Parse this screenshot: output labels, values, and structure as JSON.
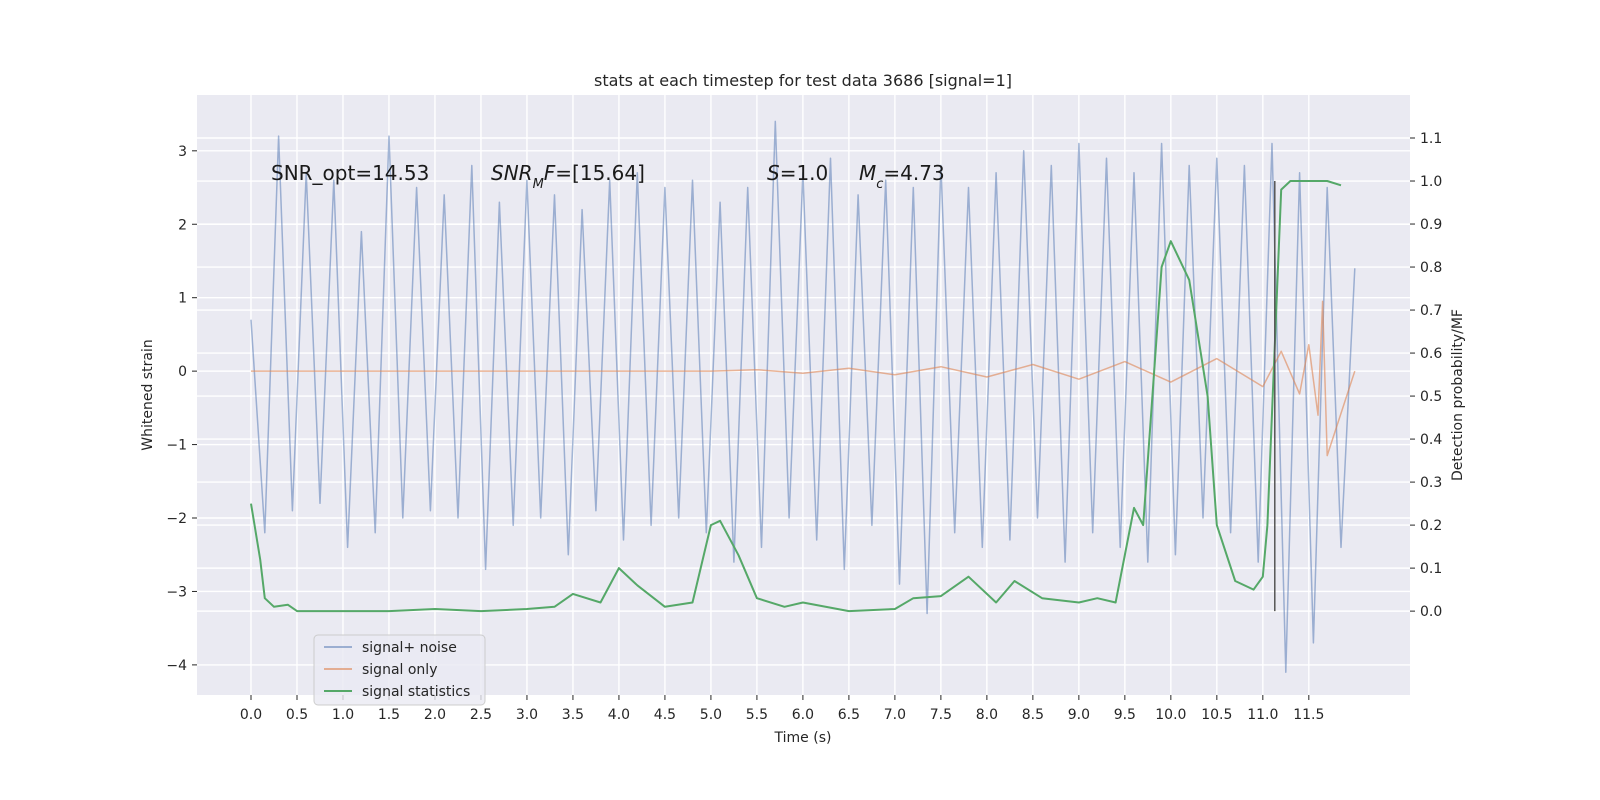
{
  "chart_data": {
    "type": "line",
    "title": "stats at each timestep for test data 3686 [signal=1]",
    "xlabel": "Time (s)",
    "ylabel": "Whitened strain",
    "y2label": "Detection probability/MF",
    "xlim": [
      -0.587,
      12.6
    ],
    "ylim": [
      -4.41,
      3.76
    ],
    "y2lim": [
      -0.195,
      1.2
    ],
    "xticks": [
      {
        "value": 0,
        "label": "0.0"
      },
      0.5,
      {
        "value": 1,
        "label": "1.0"
      },
      1.5,
      {
        "value": 2,
        "label": "2.0"
      },
      2.5,
      {
        "value": 3,
        "label": "3.0"
      },
      3.5,
      {
        "value": 4,
        "label": "4.0"
      },
      4.5,
      {
        "value": 5,
        "label": "5.0"
      },
      5.5,
      {
        "value": 6,
        "label": "6.0"
      },
      6.5,
      {
        "value": 7,
        "label": "7.0"
      },
      7.5,
      {
        "value": 8,
        "label": "8.0"
      },
      8.5,
      {
        "value": 9,
        "label": "9.0"
      },
      9.5,
      {
        "value": 10,
        "label": "10.0"
      },
      10.5,
      {
        "value": 11,
        "label": "11.0"
      },
      11.5
    ],
    "yticks": [
      -4,
      -3,
      -2,
      -1,
      0,
      1,
      2,
      3
    ],
    "y2ticks": [
      {
        "value": 0,
        "label": "0.0"
      },
      0.1,
      0.2,
      0.3,
      0.4,
      0.5,
      0.6,
      0.7,
      0.8,
      0.9,
      {
        "value": 1,
        "label": "1.0"
      },
      1.1
    ],
    "grid": true,
    "legend": "lower left",
    "series": [
      {
        "name": "signal+ noise",
        "color": "#4c72b0",
        "x": [
          0,
          0.15,
          0.3,
          0.45,
          0.6,
          0.75,
          0.9,
          1.05,
          1.2,
          1.35,
          1.5,
          1.65,
          1.8,
          1.95,
          2.1,
          2.25,
          2.4,
          2.55,
          2.7,
          2.85,
          3.0,
          3.15,
          3.3,
          3.45,
          3.6,
          3.75,
          3.9,
          4.05,
          4.2,
          4.35,
          4.5,
          4.65,
          4.8,
          4.95,
          5.1,
          5.25,
          5.4,
          5.55,
          5.7,
          5.85,
          6.0,
          6.15,
          6.3,
          6.45,
          6.6,
          6.75,
          6.9,
          7.05,
          7.2,
          7.35,
          7.5,
          7.65,
          7.8,
          7.95,
          8.1,
          8.25,
          8.4,
          8.55,
          8.7,
          8.85,
          9.0,
          9.15,
          9.3,
          9.45,
          9.6,
          9.75,
          9.9,
          10.05,
          10.2,
          10.35,
          10.5,
          10.65,
          10.8,
          10.95,
          11.1,
          11.25,
          11.4,
          11.55,
          11.7,
          11.85,
          12.0
        ],
        "values": [
          0.7,
          -2.2,
          3.2,
          -1.9,
          2.7,
          -1.8,
          2.6,
          -2.4,
          1.9,
          -2.2,
          3.2,
          -2.0,
          2.5,
          -1.9,
          2.4,
          -2.0,
          2.8,
          -2.7,
          2.3,
          -2.1,
          2.6,
          -2.0,
          2.4,
          -2.5,
          2.2,
          -1.9,
          2.6,
          -2.3,
          2.7,
          -2.1,
          2.5,
          -2.0,
          2.6,
          -2.2,
          2.3,
          -2.6,
          2.5,
          -2.4,
          3.4,
          -2.0,
          2.7,
          -2.3,
          2.9,
          -2.7,
          2.4,
          -2.1,
          2.6,
          -2.9,
          2.5,
          -3.3,
          2.8,
          -2.2,
          2.5,
          -2.4,
          2.7,
          -2.3,
          3.0,
          -2.0,
          2.8,
          -2.6,
          3.1,
          -2.2,
          2.9,
          -2.4,
          2.7,
          -2.6,
          3.1,
          -2.5,
          2.8,
          -2.0,
          2.9,
          -2.2,
          2.8,
          -2.6,
          3.1,
          -4.1,
          2.7,
          -3.7,
          2.5,
          -2.4,
          1.4
        ]
      },
      {
        "name": "signal only",
        "color": "#dd8452",
        "x": [
          0,
          1,
          2,
          3,
          4,
          5,
          5.5,
          6,
          6.5,
          7,
          7.5,
          8,
          8.5,
          9,
          9.5,
          10,
          10.5,
          11,
          11.2,
          11.4,
          11.5,
          11.6,
          11.65,
          11.7,
          12.0
        ],
        "values": [
          0,
          0,
          0,
          0,
          0,
          0,
          0.02,
          -0.03,
          0.04,
          -0.05,
          0.06,
          -0.08,
          0.09,
          -0.11,
          0.13,
          -0.15,
          0.17,
          -0.21,
          0.27,
          -0.31,
          0.36,
          -0.6,
          0.95,
          -1.15,
          0
        ]
      },
      {
        "name": "signal statistics",
        "color": "#55a868",
        "axis": "y2",
        "x": [
          0,
          0.1,
          0.15,
          0.25,
          0.4,
          0.5,
          0.7,
          1.0,
          1.5,
          2.0,
          2.5,
          3.0,
          3.3,
          3.5,
          3.8,
          4.0,
          4.2,
          4.5,
          4.8,
          5.0,
          5.1,
          5.3,
          5.5,
          5.8,
          6.0,
          6.5,
          7.0,
          7.2,
          7.5,
          7.8,
          8.1,
          8.3,
          8.6,
          9.0,
          9.2,
          9.4,
          9.6,
          9.7,
          9.9,
          10.0,
          10.2,
          10.4,
          10.5,
          10.7,
          10.9,
          11.0,
          11.05,
          11.2,
          11.3,
          11.5,
          11.7,
          11.85
        ],
        "values": [
          0.25,
          0.12,
          0.03,
          0.01,
          0.015,
          0.0,
          0.0,
          0.0,
          0.0,
          0.005,
          0.0,
          0.005,
          0.01,
          0.04,
          0.02,
          0.1,
          0.06,
          0.01,
          0.02,
          0.2,
          0.21,
          0.13,
          0.03,
          0.01,
          0.02,
          0.0,
          0.005,
          0.03,
          0.035,
          0.08,
          0.02,
          0.07,
          0.03,
          0.02,
          0.03,
          0.02,
          0.24,
          0.2,
          0.8,
          0.86,
          0.77,
          0.5,
          0.2,
          0.07,
          0.05,
          0.08,
          0.2,
          0.98,
          1.0,
          1.0,
          1.0,
          0.99
        ]
      }
    ],
    "vline": {
      "x": 11.13,
      "ymin": 0,
      "ymax": 1.0,
      "axis": "y2",
      "color": "#555555"
    },
    "annotations": [
      [
        {
          "text": "SNR_opt=14.53"
        }
      ],
      [
        {
          "text": "SNR",
          "italic": true
        },
        {
          "text": "M",
          "italic": true,
          "sub": true
        },
        {
          "text": "F",
          "italic": true
        },
        {
          "text": "=[15.64]"
        }
      ],
      [
        {
          "text": "S",
          "italic": true
        },
        {
          "text": "=1.0"
        }
      ],
      [
        {
          "text": "M",
          "italic": true
        },
        {
          "text": "c",
          "italic": true,
          "sub": true
        },
        {
          "text": "=4.73"
        }
      ]
    ]
  }
}
